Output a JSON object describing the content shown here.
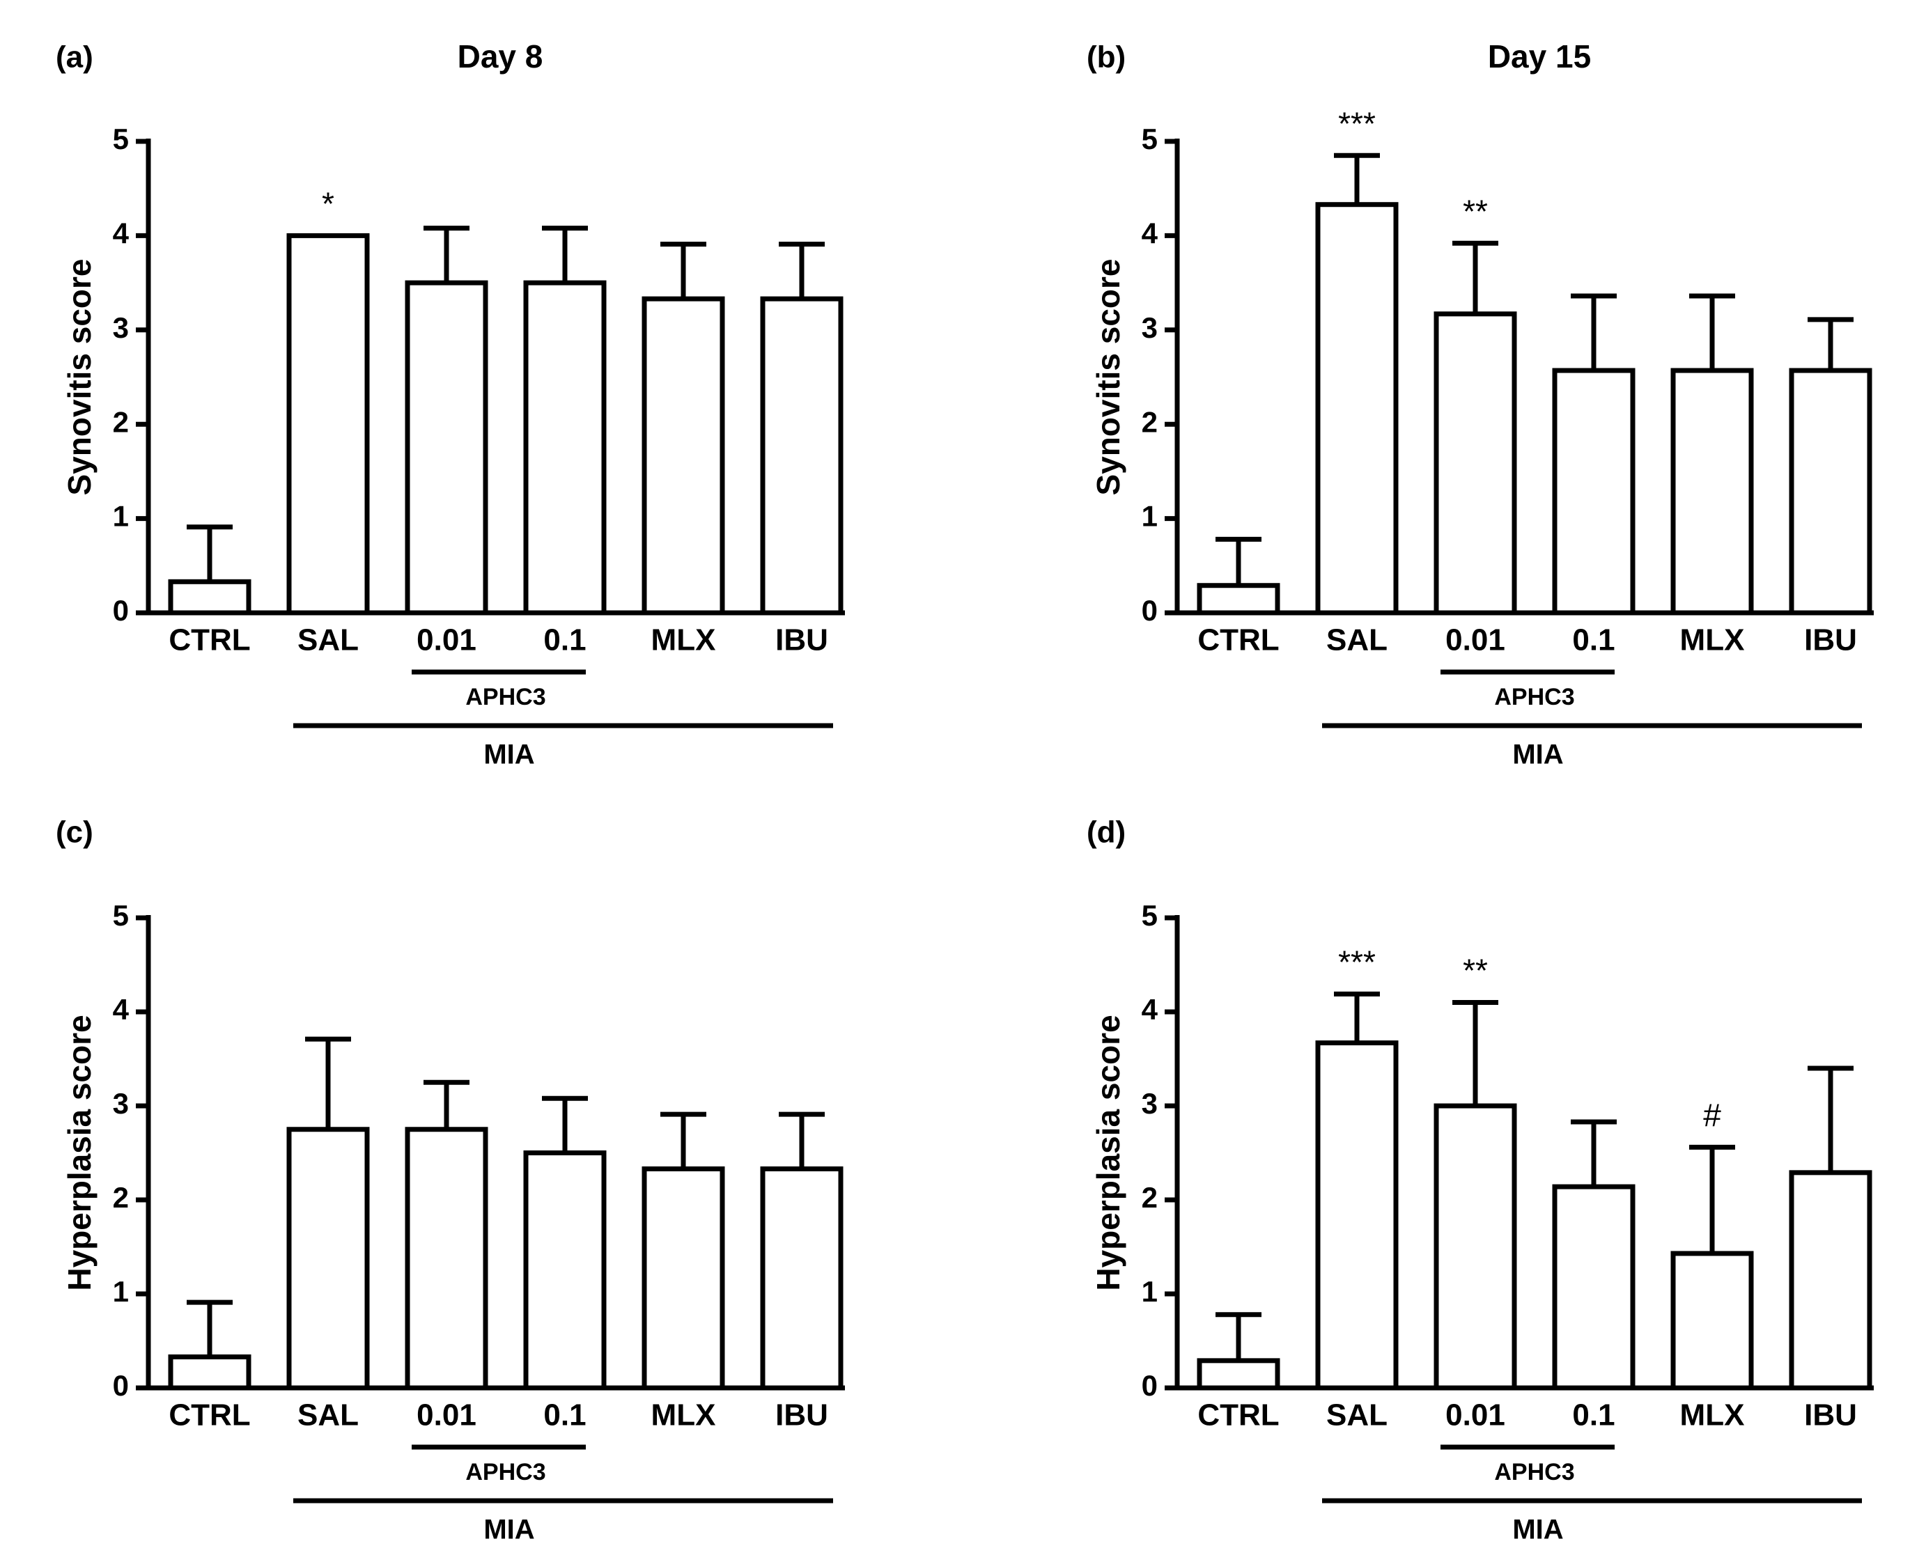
{
  "chart_data": [
    {
      "type": "bar",
      "panel_label": "(a)",
      "title": "Day 8",
      "ylabel": "Synovitis score",
      "ylim": [
        0,
        5
      ],
      "yticks": [
        "0",
        "1",
        "2",
        "3",
        "4",
        "5"
      ],
      "categories": [
        "CTRL",
        "SAL",
        "0.01",
        "0.1",
        "MLX",
        "IBU"
      ],
      "values": [
        0.33,
        4.0,
        3.5,
        3.5,
        3.33,
        3.33
      ],
      "errors": [
        0.58,
        0.0,
        0.58,
        0.58,
        0.58,
        0.58
      ],
      "annotations": [
        "",
        "*",
        "",
        "",
        "",
        ""
      ],
      "groups": {
        "inner": "APHC3",
        "outer": "MIA"
      }
    },
    {
      "type": "bar",
      "panel_label": "(b)",
      "title": "Day 15",
      "ylabel": "Synovitis score",
      "ylim": [
        0,
        5
      ],
      "yticks": [
        "0",
        "1",
        "2",
        "3",
        "4",
        "5"
      ],
      "categories": [
        "CTRL",
        "SAL",
        "0.01",
        "0.1",
        "MLX",
        "IBU"
      ],
      "values": [
        0.29,
        4.33,
        3.17,
        2.57,
        2.57,
        2.57
      ],
      "errors": [
        0.49,
        0.52,
        0.75,
        0.79,
        0.79,
        0.54
      ],
      "annotations": [
        "",
        "***",
        "**",
        "",
        "",
        ""
      ],
      "groups": {
        "inner": "APHC3",
        "outer": "MIA"
      }
    },
    {
      "type": "bar",
      "panel_label": "(c)",
      "title": "",
      "ylabel": "Hyperplasia score",
      "ylim": [
        0,
        5
      ],
      "yticks": [
        "0",
        "1",
        "2",
        "3",
        "4",
        "5"
      ],
      "categories": [
        "CTRL",
        "SAL",
        "0.01",
        "0.1",
        "MLX",
        "IBU"
      ],
      "values": [
        0.33,
        2.75,
        2.75,
        2.5,
        2.33,
        2.33
      ],
      "errors": [
        0.58,
        0.96,
        0.5,
        0.58,
        0.58,
        0.58
      ],
      "annotations": [
        "",
        "",
        "",
        "",
        "",
        ""
      ],
      "groups": {
        "inner": "APHC3",
        "outer": "MIA"
      }
    },
    {
      "type": "bar",
      "panel_label": "(d)",
      "title": "",
      "ylabel": "Hyperplasia score",
      "ylim": [
        0,
        5
      ],
      "yticks": [
        "0",
        "1",
        "2",
        "3",
        "4",
        "5"
      ],
      "categories": [
        "CTRL",
        "SAL",
        "0.01",
        "0.1",
        "MLX",
        "IBU"
      ],
      "values": [
        0.29,
        3.67,
        3.0,
        2.14,
        1.43,
        2.29
      ],
      "errors": [
        0.49,
        0.52,
        1.1,
        0.69,
        1.13,
        1.11
      ],
      "annotations": [
        "",
        "***",
        "**",
        "",
        "#",
        ""
      ],
      "groups": {
        "inner": "APHC3",
        "outer": "MIA"
      }
    }
  ]
}
